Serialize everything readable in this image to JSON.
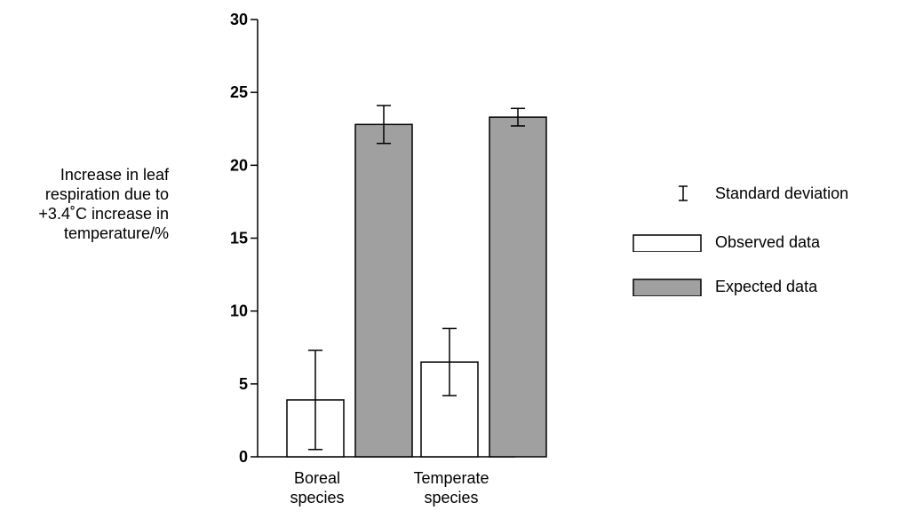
{
  "chart_data": {
    "type": "bar",
    "ylabel_lines": [
      "Increase in leaf",
      "respiration due to",
      "+3.4˚C increase in",
      "temperature/%"
    ],
    "ylim": [
      0,
      30
    ],
    "yticks": [
      "0",
      "5",
      "10",
      "15",
      "20",
      "25",
      "30"
    ],
    "categories": [
      {
        "lines": [
          "Boreal",
          "species"
        ]
      },
      {
        "lines": [
          "Temperate",
          "species"
        ]
      }
    ],
    "series": [
      {
        "name": "Observed data",
        "color": "#ffffff",
        "values": [
          3.9,
          6.5
        ],
        "error": [
          3.4,
          2.3
        ]
      },
      {
        "name": "Expected data",
        "color": "#a0a0a0",
        "values": [
          22.8,
          23.3
        ],
        "error": [
          1.3,
          0.6
        ]
      }
    ],
    "legend": {
      "placement": "right",
      "error_label": "Standard deviation",
      "items": [
        "Observed data",
        "Expected data"
      ]
    },
    "grid": false
  }
}
